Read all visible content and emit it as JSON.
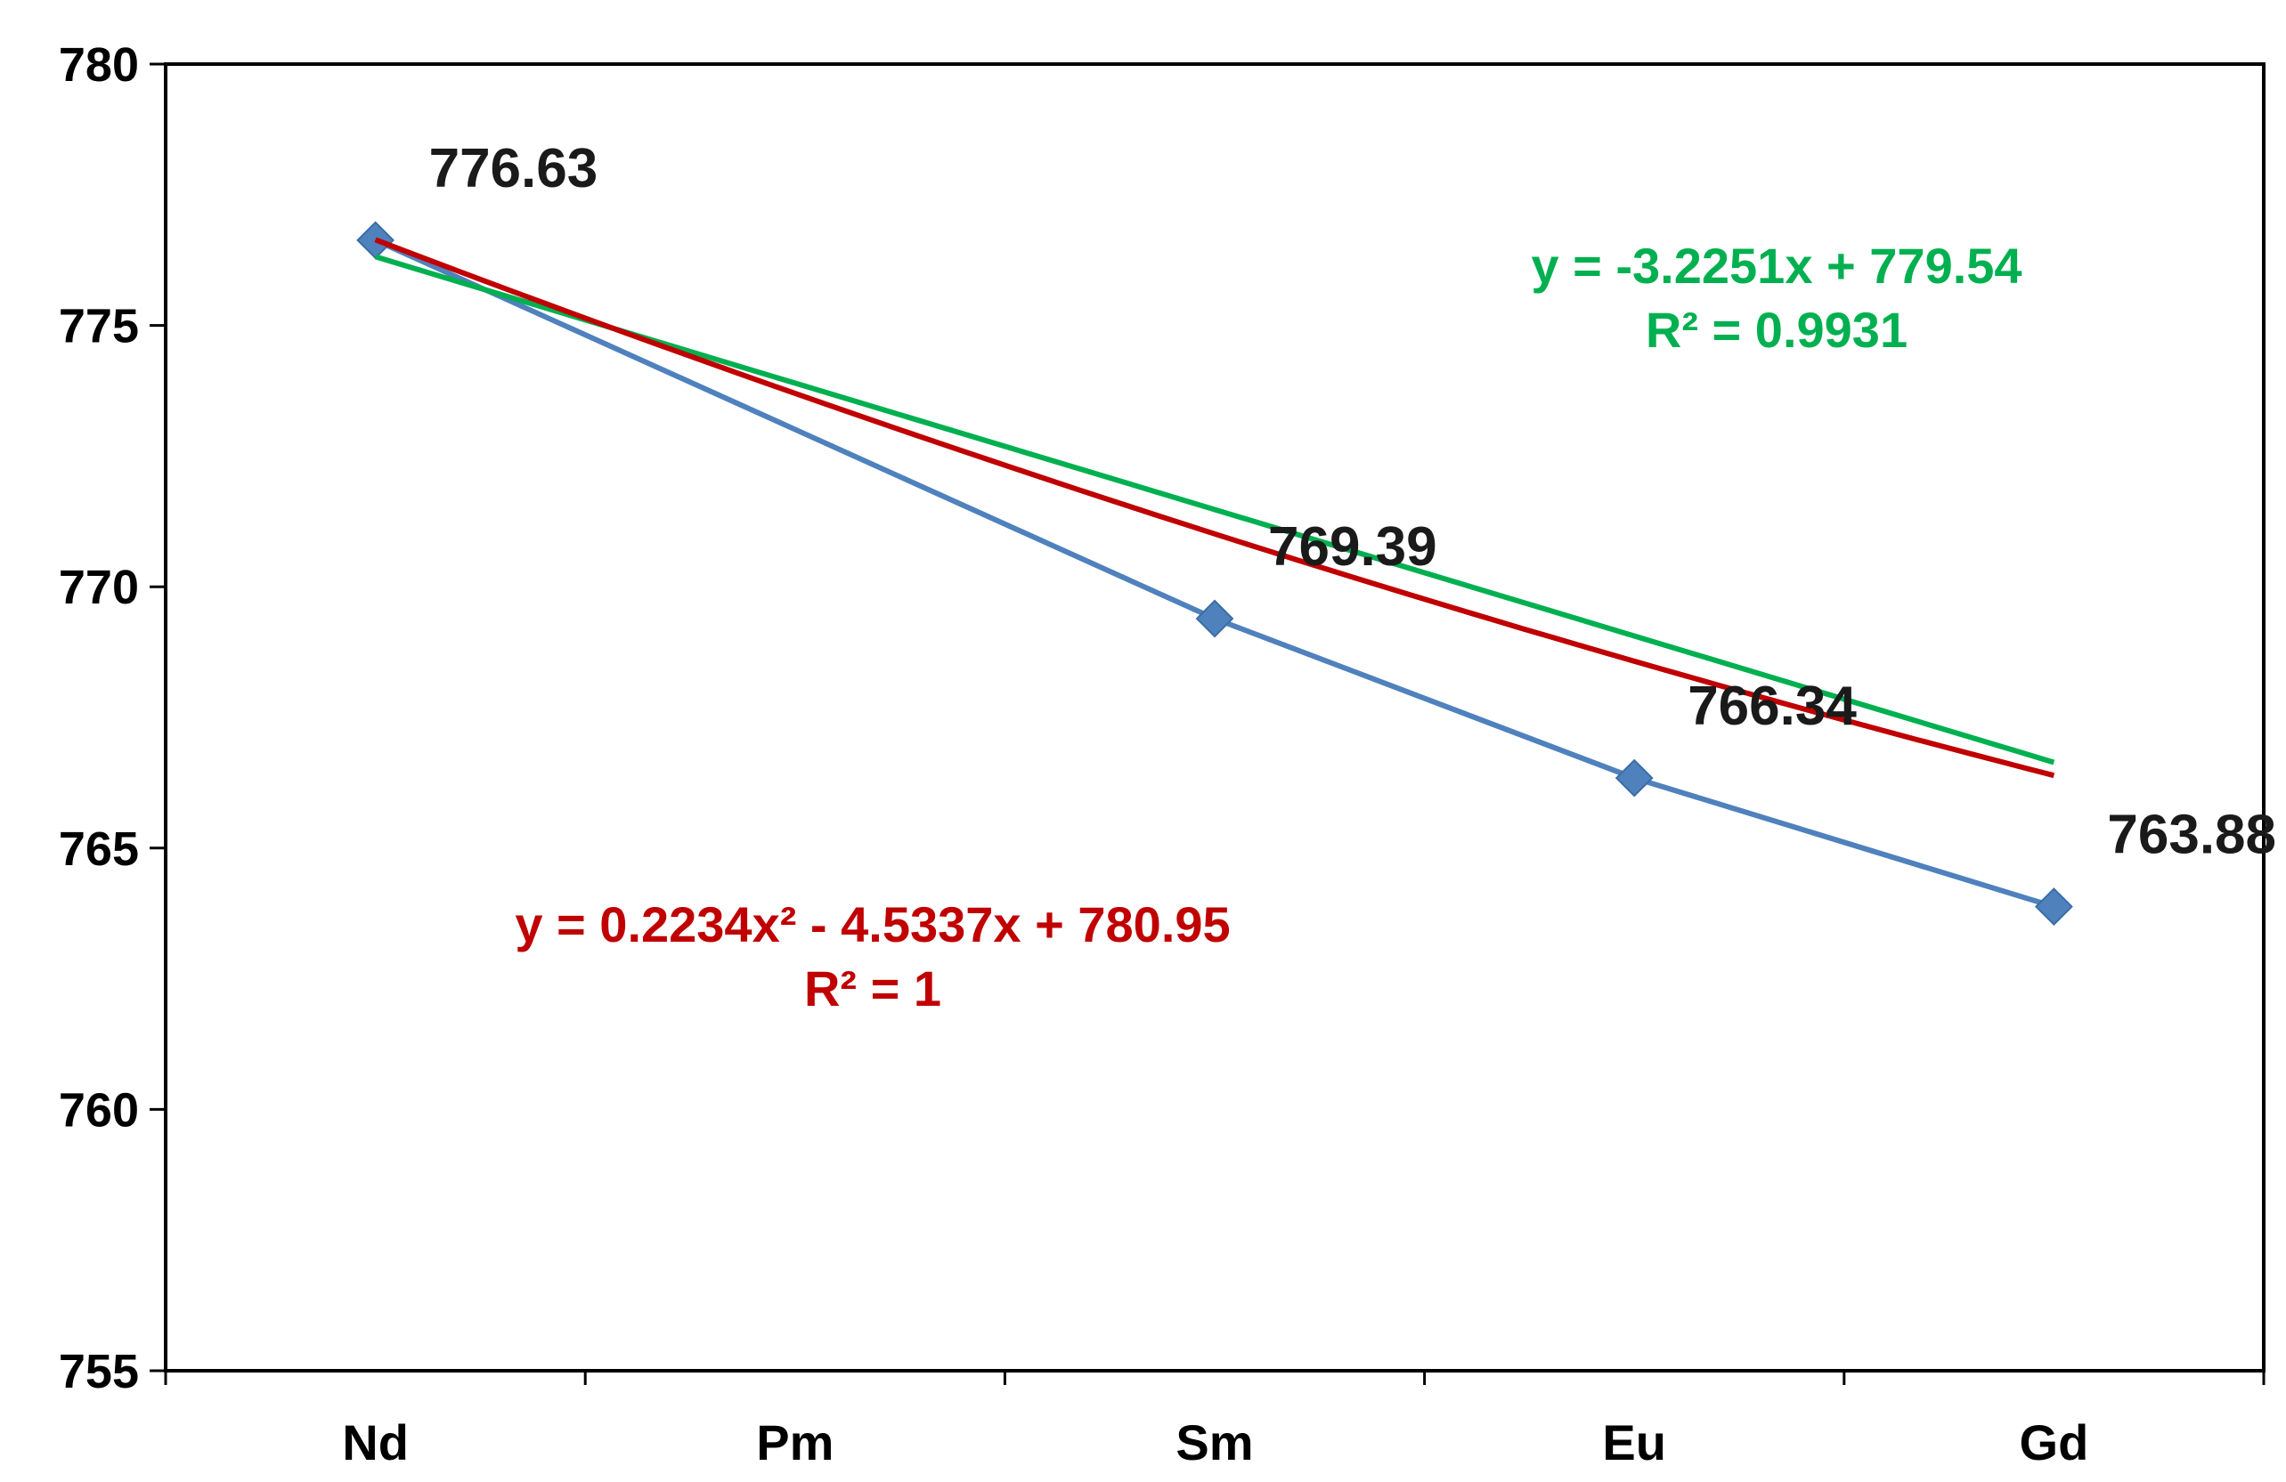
{
  "chart_data": {
    "type": "line",
    "title": "",
    "xlabel": "",
    "ylabel": "",
    "categories": [
      "Nd",
      "Pm",
      "Sm",
      "Eu",
      "Gd"
    ],
    "ylim": [
      755,
      780
    ],
    "yticks": [
      755,
      760,
      765,
      770,
      775,
      780
    ],
    "grid": false,
    "series": [
      {
        "marker": "diamond",
        "color": "#4f81bd",
        "points": [
          {
            "x": "Nd",
            "y": 776.63,
            "label": "776.63"
          },
          {
            "x": "Sm",
            "y": 769.39,
            "label": "769.39"
          },
          {
            "x": "Eu",
            "y": 766.34,
            "label": "766.34"
          },
          {
            "x": "Gd",
            "y": 763.88,
            "label": "763.88"
          }
        ]
      }
    ],
    "trendlines": [
      {
        "kind": "linear",
        "color": "#00b050",
        "coefficients": {
          "slope": -3.2251,
          "intercept": 779.54
        },
        "equation": "y = -3.2251x + 779.54",
        "r2_text": "R² = 0.9931"
      },
      {
        "kind": "polynomial",
        "color": "#c00000",
        "coefficients": {
          "a": 0.2234,
          "b": -4.5337,
          "c": 780.95
        },
        "equation": "y = 0.2234x² - 4.5337x + 780.95",
        "r2_text": "R² = 1"
      }
    ]
  }
}
